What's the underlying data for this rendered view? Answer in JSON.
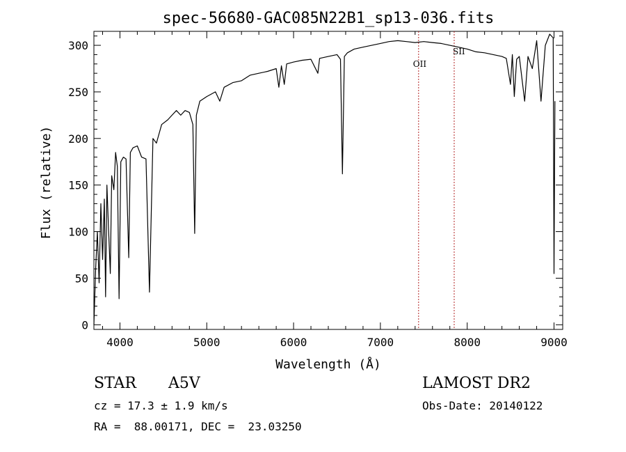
{
  "chart_data": {
    "type": "line",
    "title": "spec-56680-GAC085N22B1_sp13-036.fits",
    "xlabel": "Wavelength (Å)",
    "ylabel": "Flux (relative)",
    "xlim": [
      3700,
      9100
    ],
    "ylim": [
      -5,
      315
    ],
    "xticks": [
      4000,
      5000,
      6000,
      7000,
      8000,
      9000
    ],
    "yticks": [
      0,
      50,
      100,
      150,
      200,
      250,
      300
    ],
    "grid": false,
    "series": [
      {
        "x": [
          3700,
          3720,
          3740,
          3760,
          3780,
          3800,
          3820,
          3835,
          3850,
          3870,
          3889,
          3905,
          3930,
          3950,
          3970,
          3990,
          4010,
          4040,
          4070,
          4101,
          4120,
          4150,
          4200,
          4250,
          4300,
          4340,
          4380,
          4420,
          4480,
          4550,
          4600,
          4650,
          4700,
          4750,
          4800,
          4840,
          4861,
          4880,
          4920,
          5000,
          5100,
          5150,
          5200,
          5300,
          5400,
          5500,
          5600,
          5700,
          5800,
          5830,
          5860,
          5893,
          5920,
          6000,
          6100,
          6200,
          6280,
          6300,
          6400,
          6500,
          6540,
          6563,
          6585,
          6620,
          6700,
          6800,
          6900,
          7000,
          7100,
          7200,
          7300,
          7400,
          7500,
          7600,
          7700,
          7800,
          7900,
          8000,
          8100,
          8200,
          8300,
          8400,
          8450,
          8498,
          8520,
          8542,
          8570,
          8600,
          8662,
          8700,
          8750,
          8800,
          8850,
          8900,
          8950,
          8990,
          9000,
          9010
        ],
        "values": [
          0,
          60,
          100,
          45,
          130,
          70,
          135,
          30,
          150,
          100,
          55,
          160,
          145,
          185,
          170,
          28,
          175,
          180,
          178,
          72,
          185,
          190,
          192,
          180,
          178,
          35,
          200,
          195,
          215,
          220,
          225,
          230,
          225,
          230,
          228,
          215,
          98,
          225,
          240,
          245,
          250,
          240,
          255,
          260,
          262,
          268,
          270,
          272,
          275,
          255,
          278,
          258,
          280,
          282,
          284,
          285,
          270,
          286,
          288,
          290,
          285,
          162,
          288,
          292,
          296,
          298,
          300,
          302,
          304,
          305,
          304,
          303,
          304,
          303,
          302,
          300,
          298,
          296,
          293,
          292,
          290,
          288,
          286,
          258,
          290,
          245,
          285,
          288,
          240,
          288,
          275,
          305,
          240,
          300,
          312,
          308,
          55,
          240
        ]
      }
    ],
    "annotations": [
      {
        "label": "OII",
        "x": 7440
      },
      {
        "label": "SII",
        "x": 7850
      }
    ]
  },
  "info": {
    "object_type": "STAR",
    "subclass": "A5V",
    "survey": "LAMOST DR2",
    "redshift_line": "cz = 17.3 ± 1.9 km/s",
    "obs_date_line": "Obs-Date: 20140122",
    "coords_line": "RA =  88.00171, DEC =  23.03250"
  }
}
